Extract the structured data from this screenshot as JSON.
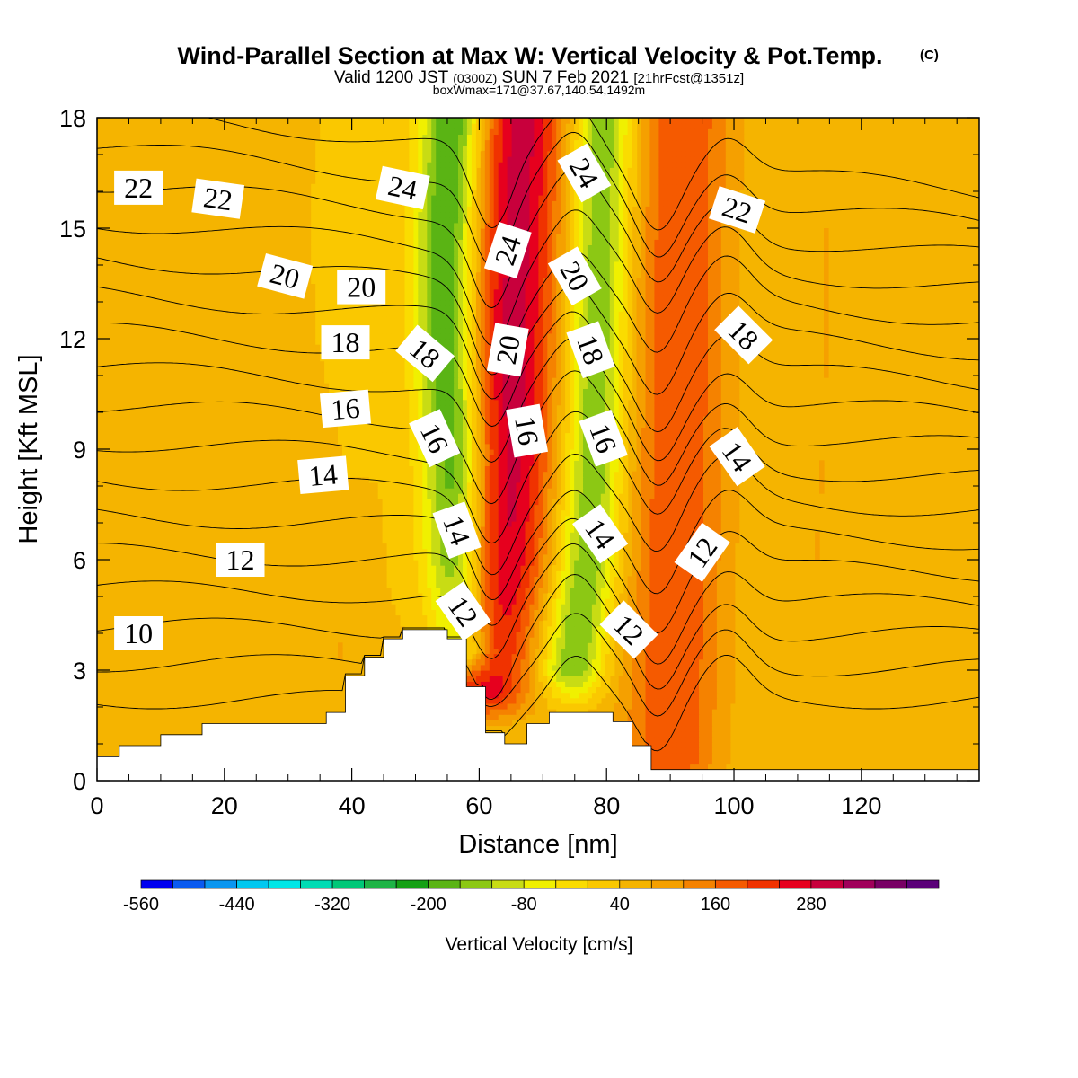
{
  "title": "Wind-Parallel Section at Max W: Vertical Velocity & Pot.Temp.",
  "title_mark": "(C)",
  "subtitle_a": "Valid 1200 JST",
  "subtitle_b": "(0300Z)",
  "subtitle_c": "SUN 7 Feb 2021",
  "subtitle_d": "[21hrFcst@1351z]",
  "subtitle_line3": "boxWmax=171@37.67,140.54,1492m",
  "chart_data": {
    "type": "heatmap",
    "xlabel": "Distance [nm]",
    "ylabel": "Height [Kft MSL]",
    "xlim": [
      0,
      138.5
    ],
    "ylim": [
      0,
      18
    ],
    "x_ticks": [
      0,
      20,
      40,
      60,
      80,
      100,
      120
    ],
    "y_ticks": [
      0,
      3,
      6,
      9,
      12,
      15,
      18
    ],
    "field": "vertical velocity",
    "colorbar": {
      "label": "Vertical Velocity [cm/s]",
      "tick_labels": [
        -560,
        -440,
        -320,
        -200,
        -80,
        40,
        160,
        280
      ],
      "levels_from": -560,
      "level_step": 40,
      "colors": [
        "#0000f0",
        "#0a5af0",
        "#0a96f0",
        "#00c8f0",
        "#00e6e6",
        "#00dcb4",
        "#00c878",
        "#1eb446",
        "#14a014",
        "#5ab414",
        "#8cc814",
        "#c8dc14",
        "#f0f000",
        "#fadc00",
        "#fac800",
        "#f5b400",
        "#f5a000",
        "#f58200",
        "#f55a00",
        "#f03200",
        "#e6001e",
        "#c8003c",
        "#a0005a",
        "#780064",
        "#5a0078"
      ]
    },
    "terrain_profile": [
      [
        0,
        0.65
      ],
      [
        3.5,
        0.65
      ],
      [
        3.5,
        0.95
      ],
      [
        10,
        0.95
      ],
      [
        10,
        1.25
      ],
      [
        16.5,
        1.25
      ],
      [
        16.5,
        1.55
      ],
      [
        36,
        1.55
      ],
      [
        36,
        1.85
      ],
      [
        39,
        1.85
      ],
      [
        39,
        2.85
      ],
      [
        42,
        2.85
      ],
      [
        42,
        3.35
      ],
      [
        45,
        3.35
      ],
      [
        45,
        3.85
      ],
      [
        48,
        3.85
      ],
      [
        48,
        4.1
      ],
      [
        55,
        4.1
      ],
      [
        55,
        3.85
      ],
      [
        58,
        3.85
      ],
      [
        58,
        2.55
      ],
      [
        61,
        2.55
      ],
      [
        61,
        1.3
      ],
      [
        64,
        1.3
      ],
      [
        64,
        1.0
      ],
      [
        67.5,
        1.0
      ],
      [
        67.5,
        1.55
      ],
      [
        71,
        1.55
      ],
      [
        71,
        1.85
      ],
      [
        81,
        1.85
      ],
      [
        81,
        1.6
      ],
      [
        84,
        1.6
      ],
      [
        84,
        0.95
      ],
      [
        87,
        0.95
      ],
      [
        87,
        0.3
      ],
      [
        138.5,
        0.3
      ]
    ],
    "updrafts": [
      {
        "axis": [
          [
            60.5,
            2.5
          ],
          [
            61.5,
            4
          ],
          [
            63.5,
            6
          ],
          [
            64.8,
            9
          ],
          [
            65.2,
            12
          ],
          [
            65.8,
            15
          ],
          [
            66.5,
            18
          ]
        ],
        "width": 7.5,
        "max": 300
      },
      {
        "axis": [
          [
            90,
            0.5
          ],
          [
            90.5,
            3
          ],
          [
            91,
            6
          ],
          [
            91.2,
            9
          ],
          [
            91.4,
            12
          ],
          [
            91.6,
            15
          ],
          [
            92,
            18
          ]
        ],
        "width": 8,
        "max": 200
      },
      {
        "axis": [
          [
            37.8,
            2.5
          ],
          [
            38.5,
            4.5
          ],
          [
            38.8,
            6
          ],
          [
            38.3,
            7
          ]
        ],
        "width": 3.5,
        "max": 80
      },
      {
        "axis": [
          [
            113,
            6
          ],
          [
            114,
            9
          ],
          [
            114.5,
            12
          ],
          [
            114.5,
            15
          ]
        ],
        "width": 4,
        "max": 80
      }
    ],
    "downdrafts": [
      {
        "axis": [
          [
            57.5,
            3.5
          ],
          [
            56.5,
            6
          ],
          [
            56,
            9
          ],
          [
            55,
            12
          ],
          [
            55,
            15
          ],
          [
            56,
            18
          ]
        ],
        "width": 5,
        "min": -230
      },
      {
        "axis": [
          [
            74.5,
            3
          ],
          [
            77,
            6
          ],
          [
            78,
            9
          ],
          [
            78.5,
            12
          ],
          [
            79,
            15
          ],
          [
            79.5,
            18
          ]
        ],
        "width": 5,
        "min": -170
      }
    ],
    "background_w": 40,
    "theta_contours": {
      "units": "C",
      "levels": [
        10,
        11,
        12,
        13,
        14,
        15,
        16,
        17,
        18,
        19,
        20,
        21,
        22,
        23,
        24,
        25,
        26
      ]
    },
    "contour_labels": [
      {
        "text": "22",
        "x": 6.5,
        "y": 16.1,
        "rot": 0
      },
      {
        "text": "22",
        "x": 19,
        "y": 15.8,
        "rot": 8
      },
      {
        "text": "24",
        "x": 48,
        "y": 16.1,
        "rot": 12
      },
      {
        "text": "24",
        "x": 64.5,
        "y": 14.4,
        "rot": -72
      },
      {
        "text": "24",
        "x": 76.5,
        "y": 16.5,
        "rot": 60
      },
      {
        "text": "22",
        "x": 100.5,
        "y": 15.5,
        "rot": 18
      },
      {
        "text": "20",
        "x": 29.5,
        "y": 13.7,
        "rot": 15
      },
      {
        "text": "20",
        "x": 41.5,
        "y": 13.4,
        "rot": 0
      },
      {
        "text": "20",
        "x": 75,
        "y": 13.7,
        "rot": 60
      },
      {
        "text": "18",
        "x": 39,
        "y": 11.9,
        "rot": 0
      },
      {
        "text": "18",
        "x": 51.5,
        "y": 11.6,
        "rot": 40
      },
      {
        "text": "20",
        "x": 64.5,
        "y": 11.7,
        "rot": -80
      },
      {
        "text": "18",
        "x": 77.5,
        "y": 11.7,
        "rot": 70
      },
      {
        "text": "18",
        "x": 101.5,
        "y": 12.1,
        "rot": 45
      },
      {
        "text": "16",
        "x": 39,
        "y": 10.1,
        "rot": -5
      },
      {
        "text": "16",
        "x": 53,
        "y": 9.3,
        "rot": 65
      },
      {
        "text": "16",
        "x": 67.5,
        "y": 9.5,
        "rot": 80
      },
      {
        "text": "16",
        "x": 79.5,
        "y": 9.3,
        "rot": 70
      },
      {
        "text": "14",
        "x": 35.5,
        "y": 8.3,
        "rot": -5
      },
      {
        "text": "14",
        "x": 100.5,
        "y": 8.8,
        "rot": 55
      },
      {
        "text": "14",
        "x": 56.5,
        "y": 6.8,
        "rot": 70
      },
      {
        "text": "14",
        "x": 79,
        "y": 6.7,
        "rot": 55
      },
      {
        "text": "12",
        "x": 22.5,
        "y": 6.0,
        "rot": 0
      },
      {
        "text": "12",
        "x": 95,
        "y": 6.2,
        "rot": -55
      },
      {
        "text": "12",
        "x": 57.5,
        "y": 4.6,
        "rot": 55
      },
      {
        "text": "12",
        "x": 83.5,
        "y": 4.1,
        "rot": 45
      },
      {
        "text": "10",
        "x": 6.5,
        "y": 4.0,
        "rot": 0
      }
    ]
  }
}
